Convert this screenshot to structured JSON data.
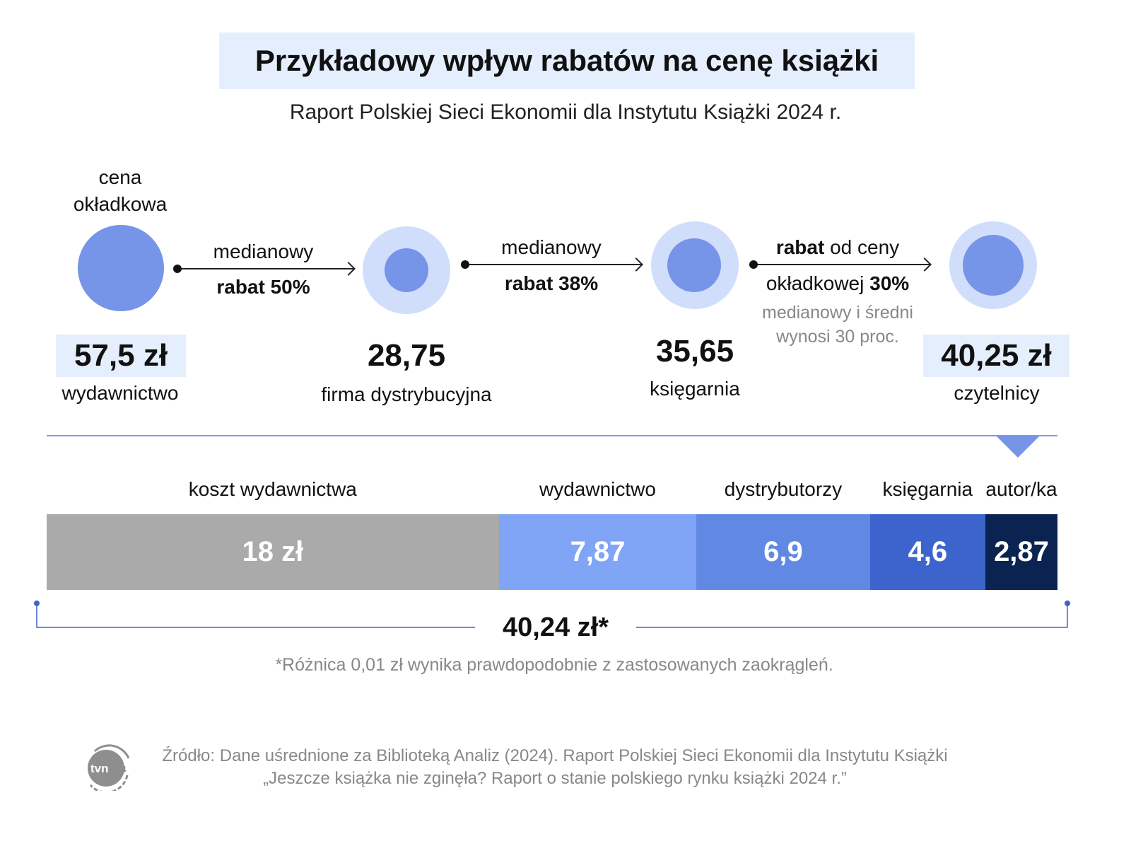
{
  "title": "Przykładowy wpływ rabatów na cenę książki",
  "subtitle": "Raport Polskiej Sieci Ekonomii dla Instytutu Książki 2024 r.",
  "flow": {
    "cover_label": "cena okładkowa",
    "stages": [
      {
        "value": "57,5 zł",
        "label": "wydawnictwo"
      },
      {
        "value": "28,75",
        "label": "firma dystrybucyjna"
      },
      {
        "value": "35,65",
        "label": "księgarnia"
      },
      {
        "value": "40,25 zł",
        "label": "czytelnicy"
      }
    ],
    "arrows": [
      {
        "line1": "medianowy",
        "line2": "rabat 50%"
      },
      {
        "line1": "medianowy",
        "line2": "rabat 38%"
      },
      {
        "line1_bold": "rabat",
        "line1_rest": " od ceny",
        "line2_rest": "okładkowej ",
        "line2_bold": "30%",
        "note1": "medianowy i średni",
        "note2": "wynosi 30 proc."
      }
    ]
  },
  "chart_data": {
    "type": "bar",
    "stacked": true,
    "orientation": "horizontal",
    "categories": [
      "koszt wydawnictwa",
      "wydawnictwo",
      "dystrybutorzy",
      "księgarnia",
      "autor/ka"
    ],
    "values": [
      18,
      7.87,
      6.9,
      4.6,
      2.87
    ],
    "value_labels": [
      "18 zł",
      "7,87",
      "6,9",
      "4,6",
      "2,87"
    ],
    "colors": [
      "#aaaaaa",
      "#80a4f6",
      "#6189e3",
      "#3d64cc",
      "#0a2350"
    ],
    "total_label": "40,24 zł*"
  },
  "footnote": "*Różnica 0,01 zł wynika prawdopodobnie z zastosowanych zaokrągleń.",
  "source_line1": "Źródło: Dane uśrednione za Biblioteką Analiz (2024). Raport Polskiej Sieci Ekonomii dla Instytutu Książki",
  "source_line2": "„Jeszcze książka nie zginęła? Raport o stanie polskiego rynku książki 2024 r.”",
  "logo_text": "tvn24"
}
